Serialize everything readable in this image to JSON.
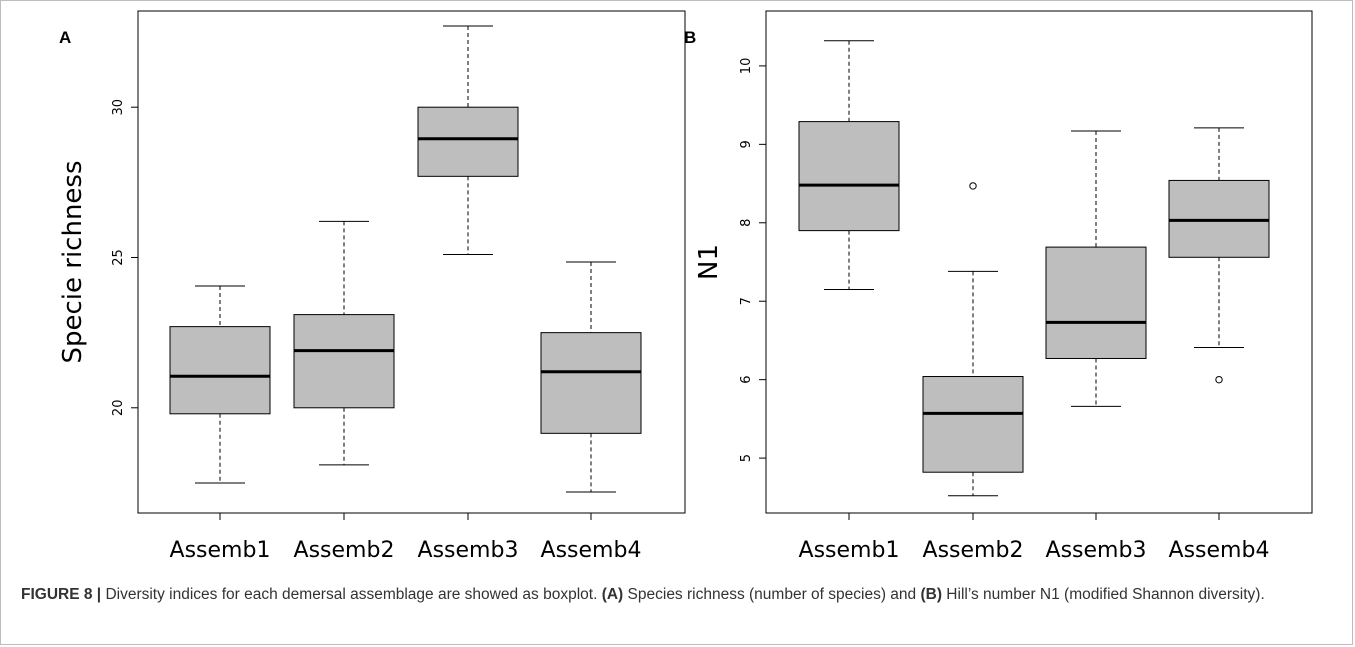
{
  "chart_data": [
    {
      "type": "box",
      "panel_label": "A",
      "ylabel": "Specie richness",
      "xlabel": "",
      "categories": [
        "Assemb1",
        "Assemb2",
        "Assemb3",
        "Assemb4"
      ],
      "ylim": [
        16.5,
        33.2
      ],
      "yticks": [
        20,
        25,
        30
      ],
      "box_color": "#bebebe",
      "boxes": [
        {
          "whisker_low": 17.5,
          "q1": 19.8,
          "median": 21.05,
          "q3": 22.7,
          "whisker_high": 24.05,
          "outliers": []
        },
        {
          "whisker_low": 18.1,
          "q1": 20.0,
          "median": 21.9,
          "q3": 23.1,
          "whisker_high": 26.2,
          "outliers": []
        },
        {
          "whisker_low": 25.1,
          "q1": 27.7,
          "median": 28.95,
          "q3": 30.0,
          "whisker_high": 32.7,
          "outliers": []
        },
        {
          "whisker_low": 17.2,
          "q1": 19.15,
          "median": 21.2,
          "q3": 22.5,
          "whisker_high": 24.85,
          "outliers": []
        }
      ]
    },
    {
      "type": "box",
      "panel_label": "B",
      "ylabel": "N1",
      "xlabel": "",
      "categories": [
        "Assemb1",
        "Assemb2",
        "Assemb3",
        "Assemb4"
      ],
      "ylim": [
        4.3,
        10.7
      ],
      "yticks": [
        5,
        6,
        7,
        8,
        9,
        10
      ],
      "box_color": "#bebebe",
      "boxes": [
        {
          "whisker_low": 7.15,
          "q1": 7.9,
          "median": 8.48,
          "q3": 9.29,
          "whisker_high": 10.32,
          "outliers": []
        },
        {
          "whisker_low": 4.52,
          "q1": 4.82,
          "median": 5.57,
          "q3": 6.04,
          "whisker_high": 7.38,
          "outliers": [
            8.47
          ]
        },
        {
          "whisker_low": 5.66,
          "q1": 6.27,
          "median": 6.73,
          "q3": 7.69,
          "whisker_high": 9.17,
          "outliers": []
        },
        {
          "whisker_low": 6.41,
          "q1": 7.56,
          "median": 8.03,
          "q3": 8.54,
          "whisker_high": 9.21,
          "outliers": [
            6.0
          ]
        }
      ]
    }
  ],
  "caption": {
    "figure_label": "FIGURE 8 |",
    "text1": " Diversity indices for each demersal assemblage are showed as boxplot. ",
    "label_a": "(A)",
    "text2": " Species richness (number of species) and ",
    "label_b": "(B)",
    "text3": " Hill’s number N1 (modified Shannon diversity)."
  }
}
